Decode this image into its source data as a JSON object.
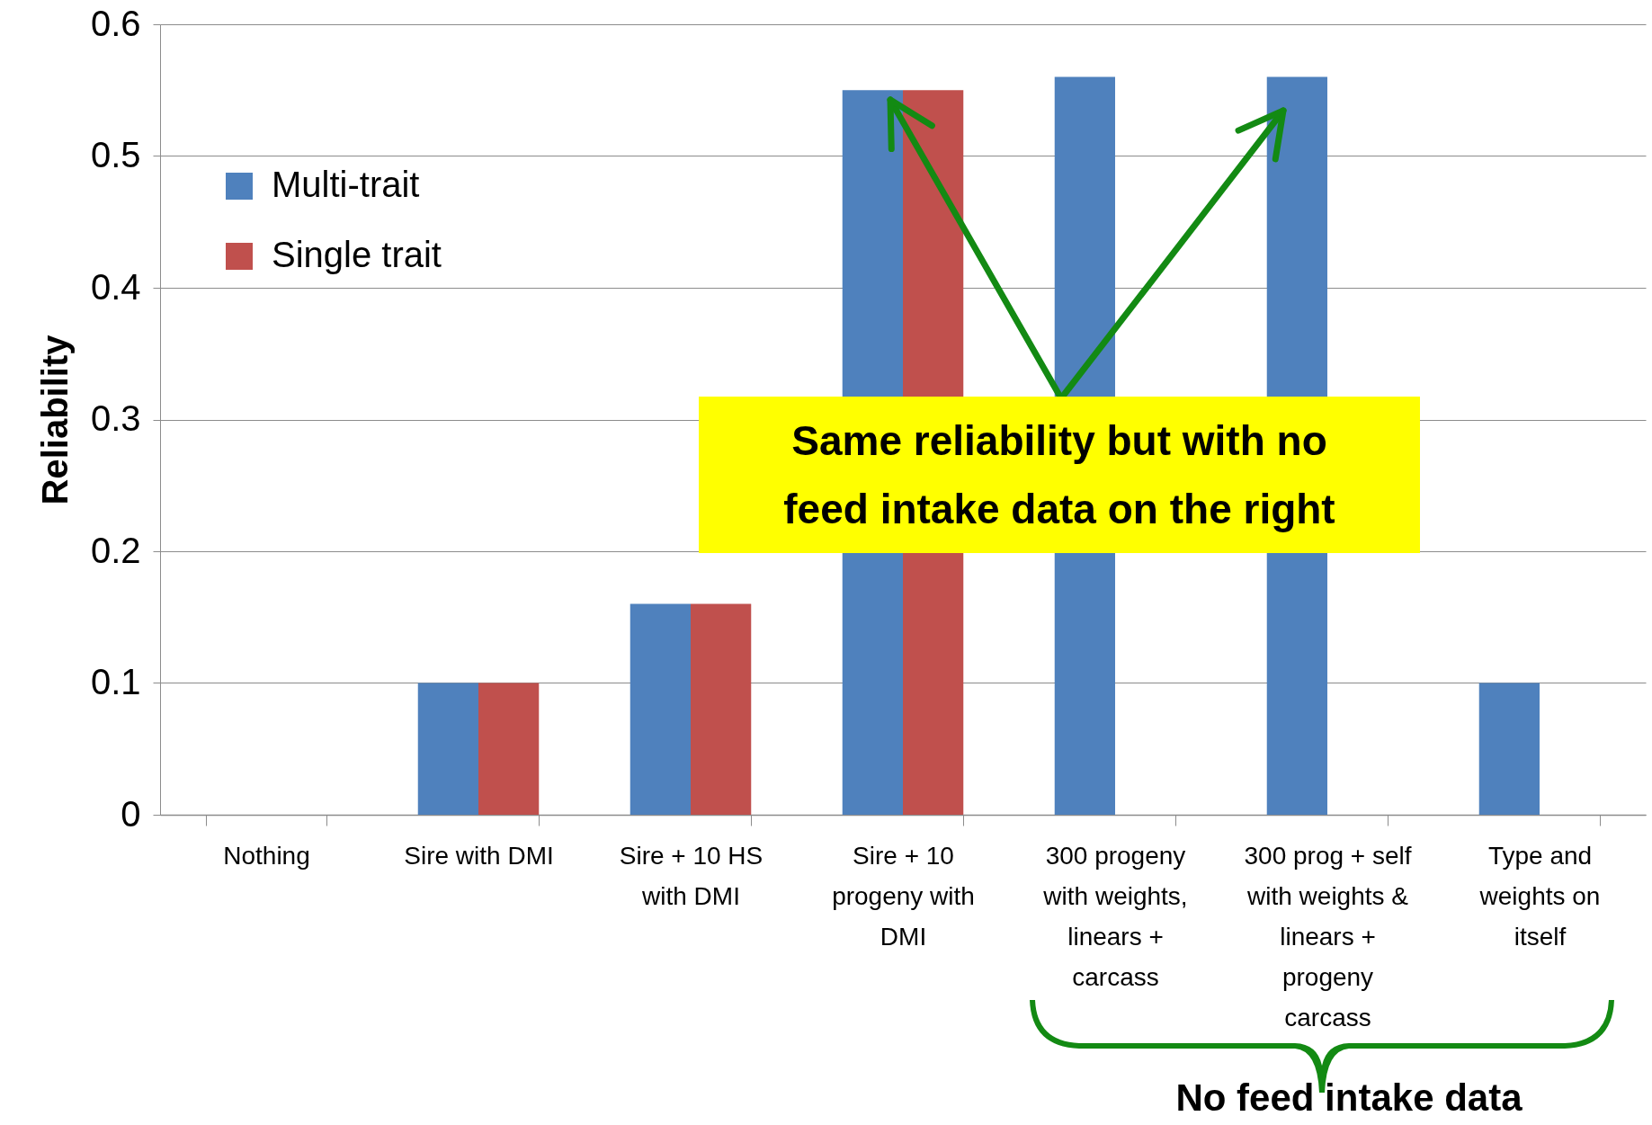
{
  "chart_data": {
    "type": "bar",
    "ylabel": "Reliability",
    "categories": [
      "Nothing",
      "Sire with DMI",
      "Sire + 10 HS\nwith DMI",
      "Sire + 10\nprogeny with\nDMI",
      "300 progeny\nwith weights,\nlinears +\ncarcass",
      "300 prog + self\nwith weights &\nlinears +\nprogeny\ncarcass",
      "Type and\nweights on\nitself"
    ],
    "series": [
      {
        "name": "Multi-trait",
        "color": "#4f81bd",
        "values": [
          0,
          0.1,
          0.16,
          0.55,
          0.56,
          0.56,
          0.1
        ]
      },
      {
        "name": "Single trait",
        "color": "#c0504d",
        "values": [
          0,
          0.1,
          0.16,
          0.55,
          null,
          null,
          null
        ]
      }
    ],
    "ylim": [
      0,
      0.6
    ],
    "yticks": [
      0,
      0.1,
      0.2,
      0.3,
      0.4,
      0.5,
      0.6
    ],
    "grid": "y",
    "legend": "top left",
    "annotations": [
      "Same reliability but with no feed intake data on the right",
      "No feed intake data"
    ]
  }
}
